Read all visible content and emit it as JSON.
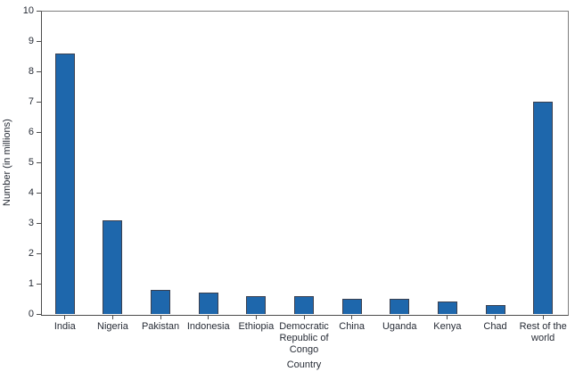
{
  "chart_data": {
    "type": "bar",
    "title": "",
    "categories": [
      "India",
      "Nigeria",
      "Pakistan",
      "Indonesia",
      "Ethiopia",
      "Democratic Republic of Congo",
      "China",
      "Uganda",
      "Kenya",
      "Chad",
      "Rest of the world"
    ],
    "category_label_lines": [
      [
        "India"
      ],
      [
        "Nigeria"
      ],
      [
        "Pakistan"
      ],
      [
        "Indonesia"
      ],
      [
        "Ethiopia"
      ],
      [
        "Democratic",
        "Republic of",
        "Congo"
      ],
      [
        "China"
      ],
      [
        "Uganda"
      ],
      [
        "Kenya"
      ],
      [
        "Chad"
      ],
      [
        "Rest of the",
        "world"
      ]
    ],
    "values": [
      8.6,
      3.1,
      0.8,
      0.7,
      0.6,
      0.6,
      0.5,
      0.5,
      0.4,
      0.3,
      7.0
    ],
    "xlabel": "Country",
    "ylabel": "Number (in millions)",
    "ylim": [
      0,
      10
    ],
    "yticks": [
      0,
      1,
      2,
      3,
      4,
      5,
      6,
      7,
      8,
      9,
      10
    ],
    "legend": "none",
    "grid": "off",
    "colors": {
      "bar_fill": "#1e67ac",
      "bar_border": "#3a4050",
      "axis_box": "#7d7d7d",
      "axis_main": "#4c4c4c",
      "text": "#262b35"
    }
  }
}
